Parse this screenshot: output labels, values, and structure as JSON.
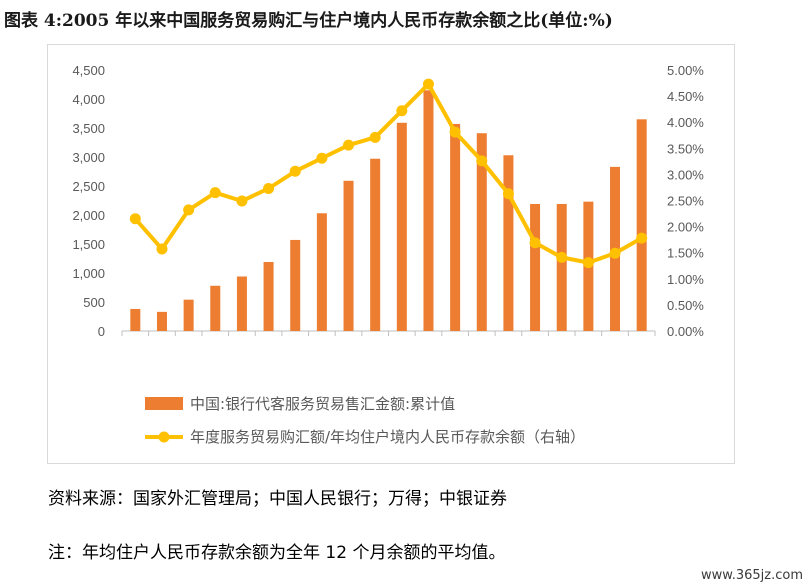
{
  "header": {
    "title": "图表 4:2005 年以来中国服务贸易购汇与住户境内人民币存款余额之比(单位:%)"
  },
  "footer": {
    "source": "资料来源：国家外汇管理局；中国人民银行；万得；中银证券",
    "note": "注：年均住户人民币存款余额为全年 12 个月余额的平均值。",
    "watermark": "www.365jz.com"
  },
  "chart_data": {
    "type": "bar",
    "categories": [
      "",
      "",
      "",
      "",
      "",
      "",
      "",
      "",
      "",
      "",
      "",
      "",
      "",
      "",
      "",
      "",
      "",
      "",
      "",
      ""
    ],
    "series": [
      {
        "name": "中国:银行代客服务贸易售汇金额:累计值",
        "type": "bar",
        "axis": "left",
        "color": "#ED7D31",
        "values": [
          380,
          330,
          540,
          780,
          940,
          1190,
          1570,
          2030,
          2590,
          2970,
          3590,
          4150,
          3570,
          3410,
          3030,
          2190,
          2190,
          2230,
          2830,
          3650
        ]
      },
      {
        "name": "年度服务贸易购汇额/年均住户境内人民币存款余额（右轴）",
        "type": "line",
        "axis": "right",
        "color": "#FFC000",
        "values": [
          2.15,
          1.57,
          2.32,
          2.65,
          2.49,
          2.73,
          3.06,
          3.31,
          3.56,
          3.71,
          4.22,
          4.73,
          3.81,
          3.26,
          2.63,
          1.69,
          1.41,
          1.31,
          1.49,
          1.78
        ]
      }
    ],
    "y_left": {
      "min": 0,
      "max": 4500,
      "step": 500,
      "ticks": [
        "0",
        "500",
        "1,000",
        "1,500",
        "2,000",
        "2,500",
        "3,000",
        "3,500",
        "4,000",
        "4,500"
      ]
    },
    "y_right": {
      "min": 0,
      "max": 5,
      "step": 0.5,
      "ticks": [
        "0.00%",
        "0.50%",
        "1.00%",
        "1.50%",
        "2.00%",
        "2.50%",
        "3.00%",
        "3.50%",
        "4.00%",
        "4.50%",
        "5.00%"
      ]
    },
    "grid": false,
    "legend": "bottom",
    "title": "",
    "xlabel": "",
    "ylabel": ""
  }
}
